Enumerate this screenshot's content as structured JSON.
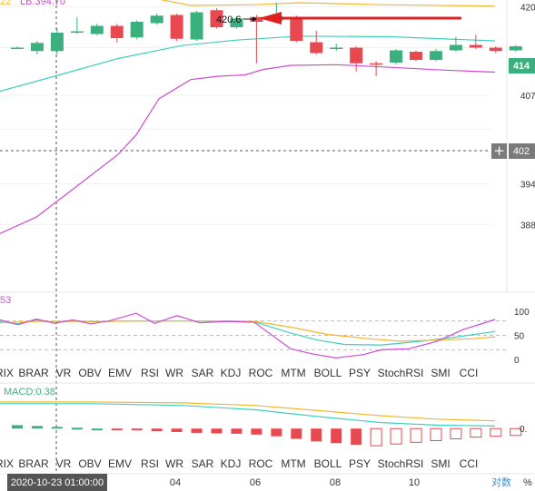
{
  "header": {
    "bb_left_fragment": "22",
    "bb_lower_label": "LB:394.70"
  },
  "main_chart": {
    "type": "candlestick",
    "ylim": [
      381,
      421
    ],
    "y_ticks": [
      "420",
      "414",
      "407",
      "402",
      "394",
      "388"
    ],
    "price_marker_label": "402",
    "plus_icon": "plus-icon",
    "high_annotation": "420.6",
    "candles": [
      {
        "o": 414.0,
        "c": 414.0,
        "h": 414.2,
        "l": 413.8
      },
      {
        "o": 413.5,
        "c": 414.7,
        "h": 415.0,
        "l": 413.0
      },
      {
        "o": 413.5,
        "c": 416.2,
        "h": 416.8,
        "l": 413.0
      },
      {
        "o": 416.2,
        "c": 416.4,
        "h": 418.5,
        "l": 416.0
      },
      {
        "o": 416.0,
        "c": 417.2,
        "h": 417.5,
        "l": 415.8
      },
      {
        "o": 417.2,
        "c": 415.4,
        "h": 417.5,
        "l": 414.8
      },
      {
        "o": 415.5,
        "c": 417.8,
        "h": 418.0,
        "l": 415.2
      },
      {
        "o": 417.6,
        "c": 418.7,
        "h": 419.0,
        "l": 417.4
      },
      {
        "o": 418.8,
        "c": 415.3,
        "h": 419.0,
        "l": 415.0
      },
      {
        "o": 415.2,
        "c": 419.2,
        "h": 419.4,
        "l": 415.0
      },
      {
        "o": 419.5,
        "c": 417.0,
        "h": 419.8,
        "l": 416.8
      },
      {
        "o": 417.0,
        "c": 418.3,
        "h": 418.6,
        "l": 416.8
      },
      {
        "o": 418.5,
        "c": 417.8,
        "h": 418.8,
        "l": 411.7
      },
      {
        "o": 417.9,
        "c": 418.6,
        "h": 420.6,
        "l": 417.6
      },
      {
        "o": 418.5,
        "c": 415.0,
        "h": 418.7,
        "l": 414.8
      },
      {
        "o": 414.8,
        "c": 413.2,
        "h": 416.5,
        "l": 413.0
      },
      {
        "o": 413.8,
        "c": 414.0,
        "h": 414.6,
        "l": 413.5
      },
      {
        "o": 414.0,
        "c": 411.7,
        "h": 414.2,
        "l": 410.5
      },
      {
        "o": 411.7,
        "c": 411.6,
        "h": 412.0,
        "l": 409.8
      },
      {
        "o": 411.8,
        "c": 413.6,
        "h": 413.8,
        "l": 411.5
      },
      {
        "o": 413.4,
        "c": 412.2,
        "h": 413.6,
        "l": 412.0
      },
      {
        "o": 412.2,
        "c": 413.5,
        "h": 413.8,
        "l": 412.0
      },
      {
        "o": 413.6,
        "c": 414.4,
        "h": 415.6,
        "l": 413.4
      },
      {
        "o": 414.4,
        "c": 414.0,
        "h": 415.9,
        "l": 413.8
      },
      {
        "o": 414.0,
        "c": 413.5,
        "h": 414.2,
        "l": 413.2
      },
      {
        "o": 413.6,
        "c": 414.2,
        "h": 414.4,
        "l": 413.4
      }
    ],
    "upper_band": [
      {
        "x": 0,
        "y": 421.8
      },
      {
        "x": 160,
        "y": 421.5
      },
      {
        "x": 210,
        "y": 420.2
      },
      {
        "x": 280,
        "y": 420.3
      },
      {
        "x": 330,
        "y": 420.6
      },
      {
        "x": 420,
        "y": 420.3
      },
      {
        "x": 545,
        "y": 420.1
      }
    ],
    "middle_band": [
      {
        "x": 0,
        "y": 407.6
      },
      {
        "x": 60,
        "y": 409.8
      },
      {
        "x": 130,
        "y": 412.4
      },
      {
        "x": 200,
        "y": 414.3
      },
      {
        "x": 260,
        "y": 415.1
      },
      {
        "x": 330,
        "y": 415.7
      },
      {
        "x": 430,
        "y": 415.6
      },
      {
        "x": 545,
        "y": 415.0
      }
    ],
    "lower_band": [
      {
        "x": 0,
        "y": 386.7
      },
      {
        "x": 40,
        "y": 389.1
      },
      {
        "x": 90,
        "y": 394.2
      },
      {
        "x": 130,
        "y": 398.3
      },
      {
        "x": 150,
        "y": 401.2
      },
      {
        "x": 175,
        "y": 406.5
      },
      {
        "x": 210,
        "y": 409.3
      },
      {
        "x": 240,
        "y": 409.8
      },
      {
        "x": 270,
        "y": 410.0
      },
      {
        "x": 290,
        "y": 410.8
      },
      {
        "x": 320,
        "y": 411.4
      },
      {
        "x": 370,
        "y": 411.5
      },
      {
        "x": 430,
        "y": 411.1
      },
      {
        "x": 490,
        "y": 410.7
      },
      {
        "x": 545,
        "y": 410.4
      }
    ]
  },
  "indicator_tabs": [
    "RIX",
    "BRAR",
    "VR",
    "OBV",
    "EMV",
    "RSI",
    "WR",
    "SAR",
    "KDJ",
    "ROC",
    "MTM",
    "BOLL",
    "PSY",
    "StochRSI",
    "SMI",
    "CCI"
  ],
  "active_tab": "KDJ",
  "kdj_chart": {
    "left_fragment": "53",
    "ylim": [
      0,
      100
    ],
    "y_ticks": [
      "100",
      "50",
      "0"
    ],
    "dashed_levels": [
      80,
      50,
      20
    ],
    "k_line": [
      {
        "x": 0,
        "y": 78
      },
      {
        "x": 20,
        "y": 74
      },
      {
        "x": 40,
        "y": 82
      },
      {
        "x": 60,
        "y": 78
      },
      {
        "x": 80,
        "y": 81
      },
      {
        "x": 100,
        "y": 78
      },
      {
        "x": 120,
        "y": 79
      },
      {
        "x": 140,
        "y": 80
      },
      {
        "x": 160,
        "y": 80
      },
      {
        "x": 200,
        "y": 80
      },
      {
        "x": 240,
        "y": 79
      },
      {
        "x": 280,
        "y": 78
      },
      {
        "x": 320,
        "y": 55
      },
      {
        "x": 350,
        "y": 40
      },
      {
        "x": 380,
        "y": 31
      },
      {
        "x": 420,
        "y": 30
      },
      {
        "x": 460,
        "y": 37
      },
      {
        "x": 500,
        "y": 46
      },
      {
        "x": 545,
        "y": 58
      }
    ],
    "d_line": [
      {
        "x": 0,
        "y": 76
      },
      {
        "x": 40,
        "y": 79
      },
      {
        "x": 80,
        "y": 79
      },
      {
        "x": 120,
        "y": 79
      },
      {
        "x": 160,
        "y": 80
      },
      {
        "x": 200,
        "y": 80
      },
      {
        "x": 240,
        "y": 80
      },
      {
        "x": 280,
        "y": 79
      },
      {
        "x": 320,
        "y": 67
      },
      {
        "x": 360,
        "y": 52
      },
      {
        "x": 400,
        "y": 44
      },
      {
        "x": 440,
        "y": 38
      },
      {
        "x": 480,
        "y": 40
      },
      {
        "x": 520,
        "y": 43
      },
      {
        "x": 545,
        "y": 47
      }
    ],
    "j_line": [
      {
        "x": 0,
        "y": 82
      },
      {
        "x": 20,
        "y": 72
      },
      {
        "x": 40,
        "y": 84
      },
      {
        "x": 60,
        "y": 75
      },
      {
        "x": 80,
        "y": 82
      },
      {
        "x": 100,
        "y": 74
      },
      {
        "x": 120,
        "y": 80
      },
      {
        "x": 150,
        "y": 96
      },
      {
        "x": 170,
        "y": 75
      },
      {
        "x": 195,
        "y": 91
      },
      {
        "x": 220,
        "y": 76
      },
      {
        "x": 250,
        "y": 79
      },
      {
        "x": 280,
        "y": 77
      },
      {
        "x": 320,
        "y": 22
      },
      {
        "x": 345,
        "y": 11
      },
      {
        "x": 370,
        "y": 3
      },
      {
        "x": 400,
        "y": 10
      },
      {
        "x": 420,
        "y": 20
      },
      {
        "x": 450,
        "y": 22
      },
      {
        "x": 480,
        "y": 37
      },
      {
        "x": 510,
        "y": 62
      },
      {
        "x": 545,
        "y": 83
      }
    ]
  },
  "macd_chart": {
    "label": "MACD:0.38",
    "ylim": [
      -2.0,
      2.5
    ],
    "y_ticks": [
      "0."
    ],
    "dif_line": [
      {
        "x": 0,
        "y": 1.45
      },
      {
        "x": 100,
        "y": 1.45
      },
      {
        "x": 200,
        "y": 1.35
      },
      {
        "x": 280,
        "y": 1.1
      },
      {
        "x": 350,
        "y": 0.7
      },
      {
        "x": 420,
        "y": 0.35
      },
      {
        "x": 480,
        "y": 0.2
      },
      {
        "x": 545,
        "y": 0.15
      }
    ],
    "dea_line": [
      {
        "x": 0,
        "y": 1.55
      },
      {
        "x": 100,
        "y": 1.55
      },
      {
        "x": 200,
        "y": 1.5
      },
      {
        "x": 280,
        "y": 1.35
      },
      {
        "x": 350,
        "y": 1.05
      },
      {
        "x": 420,
        "y": 0.75
      },
      {
        "x": 480,
        "y": 0.55
      },
      {
        "x": 545,
        "y": 0.45
      }
    ],
    "histogram": [
      0.2,
      0.15,
      0.1,
      0.05,
      0.0,
      -0.05,
      -0.1,
      -0.15,
      -0.2,
      -0.25,
      -0.28,
      -0.3,
      -0.35,
      -0.45,
      -0.6,
      -0.75,
      -0.85,
      -0.95,
      -1.0,
      -0.9,
      -0.8,
      -0.7,
      -0.6,
      -0.5,
      -0.45,
      -0.4
    ]
  },
  "footer": {
    "crosshair_time": "2020-10-23 01:00:00",
    "x_ticks": [
      "04",
      "06",
      "08",
      "10"
    ],
    "log_button": "对数",
    "percent_button": "%"
  },
  "colors": {
    "up": "#3caf7e",
    "down": "#e8484f",
    "upper_band": "#f3b630",
    "middle_band": "#3fcfbf",
    "lower_band": "#d04ad3",
    "kdj_k": "#3fcfbf",
    "kdj_d": "#f3b630",
    "kdj_j": "#d04ad3",
    "active_tab": "#3a8fd6",
    "marker_bg": "#7a7a7a",
    "annotation_arrow": "#e02020"
  }
}
